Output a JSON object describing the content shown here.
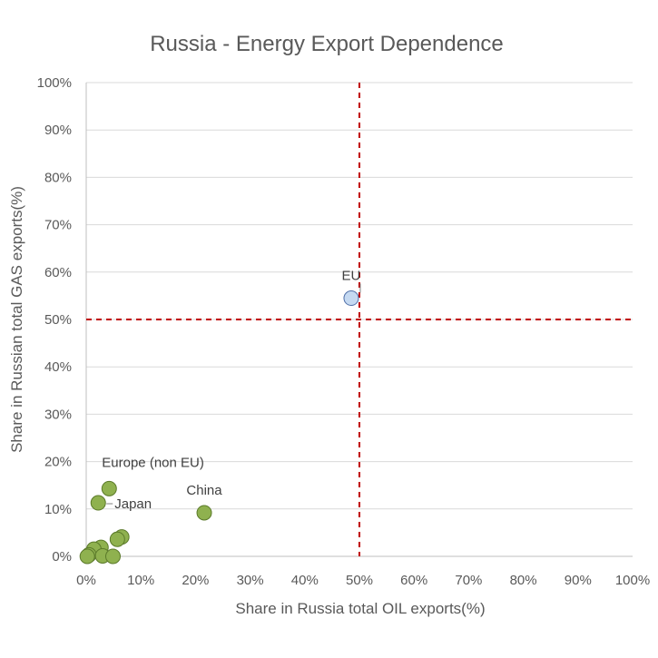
{
  "chart_data": {
    "type": "scatter",
    "title": "Russia - Energy Export Dependence",
    "xlabel": "Share in Russia total OIL exports(%)",
    "ylabel": "Share in Russian total GAS exports(%)",
    "xlim": [
      0,
      100
    ],
    "ylim": [
      0,
      100
    ],
    "x_ticks": [
      "0%",
      "10%",
      "20%",
      "30%",
      "40%",
      "50%",
      "60%",
      "70%",
      "80%",
      "90%",
      "100%"
    ],
    "y_ticks": [
      "0%",
      "10%",
      "20%",
      "30%",
      "40%",
      "50%",
      "60%",
      "70%",
      "80%",
      "90%",
      "100%"
    ],
    "grid": "horizontal",
    "reference_lines": [
      {
        "axis": "x",
        "value": 50,
        "style": "dashed",
        "color": "#c00000"
      },
      {
        "axis": "y",
        "value": 50,
        "style": "dashed",
        "color": "#c00000"
      }
    ],
    "points": [
      {
        "x": 48.5,
        "y": 54.5,
        "label": "EU",
        "color": "#c5d9f1",
        "stroke": "#4f6fa8"
      },
      {
        "x": 4.2,
        "y": 14.3,
        "label": "Europe (non EU)",
        "color": "#8fb14f",
        "stroke": "#5b7a2a"
      },
      {
        "x": 2.2,
        "y": 11.3,
        "label": "Japan",
        "color": "#8fb14f",
        "stroke": "#5b7a2a"
      },
      {
        "x": 21.6,
        "y": 9.2,
        "label": "China",
        "color": "#8fb14f",
        "stroke": "#5b7a2a"
      },
      {
        "x": 6.5,
        "y": 4.1,
        "label": "",
        "color": "#8fb14f",
        "stroke": "#5b7a2a"
      },
      {
        "x": 5.7,
        "y": 3.6,
        "label": "",
        "color": "#8fb14f",
        "stroke": "#5b7a2a"
      },
      {
        "x": 2.7,
        "y": 1.9,
        "label": "",
        "color": "#8fb14f",
        "stroke": "#5b7a2a"
      },
      {
        "x": 1.4,
        "y": 1.5,
        "label": "",
        "color": "#8fb14f",
        "stroke": "#5b7a2a"
      },
      {
        "x": 0.5,
        "y": 0.3,
        "label": "",
        "color": "#8fb14f",
        "stroke": "#5b7a2a"
      },
      {
        "x": 0.2,
        "y": 0.0,
        "label": "",
        "color": "#8fb14f",
        "stroke": "#5b7a2a"
      },
      {
        "x": 3.0,
        "y": 0.1,
        "label": "",
        "color": "#8fb14f",
        "stroke": "#5b7a2a"
      },
      {
        "x": 4.9,
        "y": 0.0,
        "label": "",
        "color": "#8fb14f",
        "stroke": "#5b7a2a"
      }
    ]
  }
}
